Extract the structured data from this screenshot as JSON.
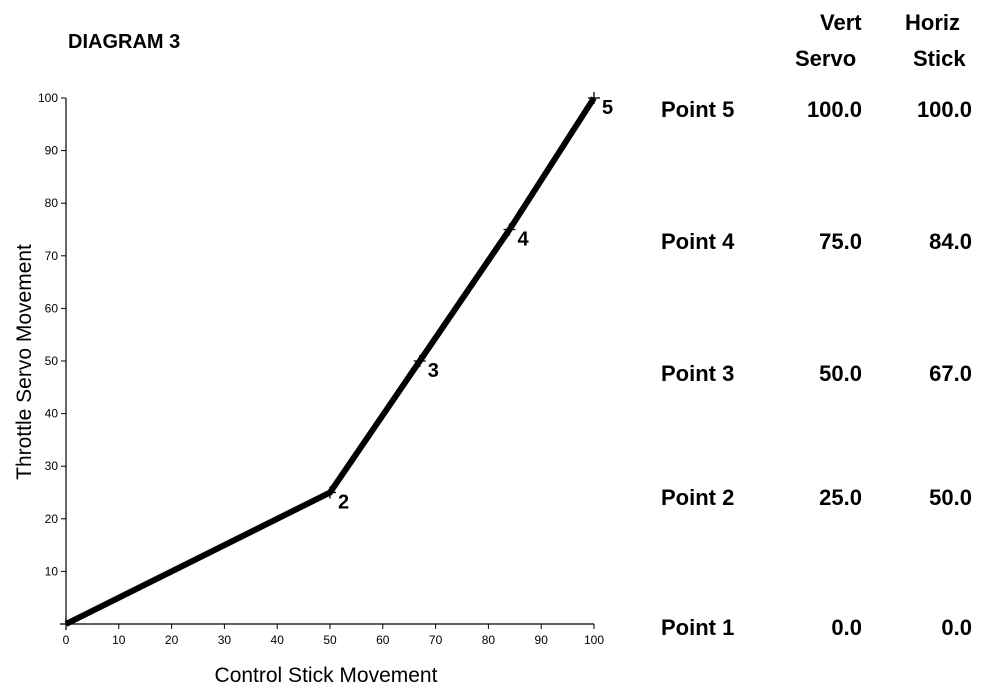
{
  "chart_data": {
    "type": "line",
    "title": "DIAGRAM 3",
    "xlabel": "Control Stick Movement",
    "ylabel": "Throttle Servo Movement",
    "xlim": [
      0,
      100
    ],
    "ylim": [
      0,
      100
    ],
    "xticks": [
      "0",
      "10",
      "20",
      "30",
      "40",
      "50",
      "60",
      "70",
      "80",
      "90",
      "100"
    ],
    "yticks": [
      "10",
      "20",
      "30",
      "40",
      "50",
      "60",
      "70",
      "80",
      "90",
      "100"
    ],
    "grid": false,
    "series": [
      {
        "points": [
          {
            "x": 0,
            "y": 0
          },
          {
            "x": 50,
            "y": 25,
            "label": "2"
          },
          {
            "x": 67,
            "y": 50,
            "label": "3"
          },
          {
            "x": 84,
            "y": 75,
            "label": "4"
          },
          {
            "x": 100,
            "y": 100,
            "label": "5"
          }
        ]
      }
    ]
  },
  "table": {
    "headers": [
      {
        "line1": "Vert",
        "line2": "Servo"
      },
      {
        "line1": "Horiz",
        "line2": "Stick"
      }
    ],
    "rows": [
      {
        "name": "Point 5",
        "vert": "100.0",
        "horiz": "100.0"
      },
      {
        "name": "Point 4",
        "vert": "75.0",
        "horiz": "84.0"
      },
      {
        "name": "Point 3",
        "vert": "50.0",
        "horiz": "67.0"
      },
      {
        "name": "Point 2",
        "vert": "25.0",
        "horiz": "50.0"
      },
      {
        "name": "Point 1",
        "vert": "0.0",
        "horiz": "0.0"
      }
    ]
  }
}
